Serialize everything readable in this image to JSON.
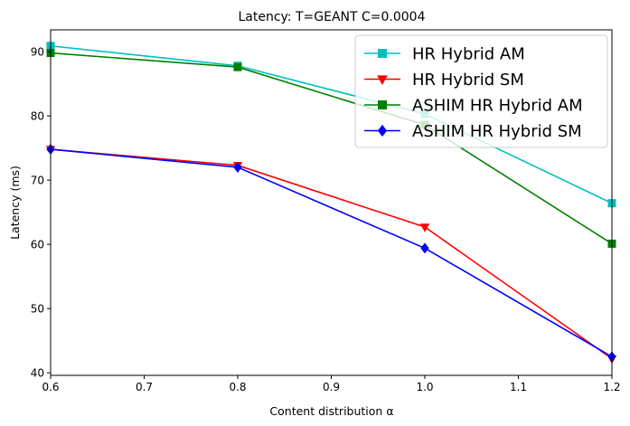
{
  "chart_data": {
    "type": "line",
    "title": "Latency: T=GEANT C=0.0004",
    "xlabel": "Content distribution α",
    "ylabel": "Latency (ms)",
    "x": [
      0.6,
      0.8,
      1.0,
      1.2
    ],
    "xlim": [
      0.6,
      1.2
    ],
    "ylim": [
      39.6,
      93.4
    ],
    "xticks": [
      0.6,
      0.7,
      0.8,
      0.9,
      1.0,
      1.1,
      1.2
    ],
    "xtick_labels": [
      "0.6",
      "0.7",
      "0.8",
      "0.9",
      "1.0",
      "1.1",
      "1.2"
    ],
    "yticks": [
      40,
      50,
      60,
      70,
      80,
      90
    ],
    "ytick_labels": [
      "40",
      "50",
      "60",
      "70",
      "80",
      "90"
    ],
    "grid": false,
    "legend_position": "top-right",
    "series": [
      {
        "name": "HR Hybrid AM",
        "color": "#00bfbf",
        "marker": "square",
        "values": [
          90.9,
          87.8,
          80.3,
          66.4
        ]
      },
      {
        "name": "HR Hybrid SM",
        "color": "#ff0000",
        "marker": "triangle-down",
        "values": [
          74.8,
          72.3,
          62.7,
          42.2
        ]
      },
      {
        "name": "ASHIM HR Hybrid AM",
        "color": "#008000",
        "marker": "square",
        "values": [
          89.8,
          87.6,
          78.6,
          60.1
        ]
      },
      {
        "name": "ASHIM HR Hybrid SM",
        "color": "#0000ff",
        "marker": "diamond",
        "values": [
          74.8,
          72.0,
          59.4,
          42.5
        ]
      }
    ]
  }
}
